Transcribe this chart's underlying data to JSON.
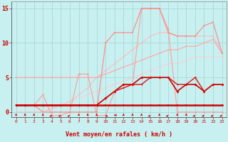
{
  "background_color": "#c8f0f0",
  "grid_color": "#a8d8d8",
  "xlabel": "Vent moyen/en rafales ( km/h )",
  "xlim": [
    -0.5,
    23.5
  ],
  "ylim": [
    -0.7,
    16
  ],
  "yticks": [
    0,
    5,
    10,
    15
  ],
  "xticks": [
    0,
    1,
    2,
    3,
    4,
    5,
    6,
    7,
    8,
    9,
    10,
    11,
    12,
    13,
    14,
    15,
    16,
    17,
    18,
    19,
    20,
    21,
    22,
    23
  ],
  "series": [
    {
      "x": [
        0,
        1,
        2,
        3,
        4,
        5,
        6,
        7,
        8,
        9,
        10,
        11,
        12,
        13,
        14,
        15,
        16,
        17,
        18,
        19,
        20,
        21,
        22,
        23
      ],
      "y": [
        1,
        1,
        1,
        1,
        1,
        1,
        1,
        1,
        1,
        1,
        1,
        1,
        1,
        1,
        1,
        1,
        1,
        1,
        1,
        1,
        1,
        1,
        1,
        1
      ],
      "color": "#cc0000",
      "linewidth": 1.8,
      "marker": "s",
      "markersize": 2.0,
      "alpha": 1.0,
      "zorder": 5
    },
    {
      "x": [
        0,
        1,
        2,
        3,
        4,
        5,
        6,
        7,
        8,
        9,
        10,
        11,
        12,
        13,
        14,
        15,
        16,
        17,
        18,
        19,
        20,
        21,
        22,
        23
      ],
      "y": [
        1,
        1,
        1,
        1,
        1,
        1,
        1,
        1,
        1,
        1,
        2,
        3,
        4,
        4,
        5,
        5,
        5,
        5,
        3,
        4,
        4,
        3,
        4,
        4
      ],
      "color": "#cc0000",
      "linewidth": 1.2,
      "marker": "D",
      "markersize": 2.0,
      "alpha": 1.0,
      "zorder": 4
    },
    {
      "x": [
        0,
        1,
        2,
        3,
        4,
        5,
        6,
        7,
        8,
        9,
        10,
        11,
        12,
        13,
        14,
        15,
        16,
        17,
        18,
        19,
        20,
        21,
        22,
        23
      ],
      "y": [
        5,
        5,
        5,
        5,
        5,
        5,
        5,
        5,
        5,
        5,
        5.5,
        6,
        6.5,
        7,
        7.5,
        8,
        8.5,
        9,
        9,
        9.5,
        9.5,
        10,
        10.5,
        8.5
      ],
      "color": "#ffaaaa",
      "linewidth": 1.0,
      "marker": "s",
      "markersize": 1.8,
      "alpha": 0.9,
      "zorder": 2
    },
    {
      "x": [
        0,
        1,
        2,
        3,
        4,
        5,
        6,
        7,
        8,
        9,
        10,
        11,
        12,
        13,
        14,
        15,
        16,
        17,
        18,
        19,
        20,
        21,
        22,
        23
      ],
      "y": [
        0,
        0,
        0,
        0,
        0.5,
        1,
        1.5,
        2,
        2.5,
        3,
        3.5,
        4,
        4.5,
        5,
        5.5,
        6,
        6.5,
        7,
        7,
        7.5,
        8,
        8,
        8,
        8
      ],
      "color": "#ffcccc",
      "linewidth": 1.0,
      "marker": "o",
      "markersize": 1.5,
      "alpha": 0.75,
      "zorder": 1
    },
    {
      "x": [
        0,
        1,
        2,
        3,
        4,
        5,
        6,
        7,
        8,
        9,
        10,
        11,
        12,
        13,
        14,
        15,
        16,
        17,
        18,
        19,
        20,
        21,
        22,
        23
      ],
      "y": [
        0,
        0,
        0,
        0,
        0.5,
        1,
        1.5,
        2.5,
        3.5,
        5,
        6,
        7,
        8,
        9,
        10,
        11,
        11.5,
        11.5,
        11,
        11,
        11,
        11,
        11,
        8.5
      ],
      "color": "#ffbbbb",
      "linewidth": 1.0,
      "marker": "o",
      "markersize": 1.8,
      "alpha": 0.8,
      "zorder": 1
    },
    {
      "x": [
        0,
        1,
        2,
        3,
        4,
        5,
        6,
        7,
        8,
        9,
        10,
        11,
        12,
        13,
        14,
        15,
        16,
        17,
        18,
        19,
        20,
        21,
        22,
        23
      ],
      "y": [
        1,
        1,
        1,
        2.5,
        -0.5,
        -0.5,
        0,
        5.5,
        5.5,
        -0.5,
        -0.5,
        3,
        4,
        4,
        15,
        15,
        15,
        12,
        0,
        0,
        0,
        0,
        0,
        0
      ],
      "color": "#ff9999",
      "linewidth": 0.9,
      "marker": "o",
      "markersize": 2.0,
      "alpha": 0.85,
      "zorder": 3
    },
    {
      "x": [
        0,
        1,
        2,
        3,
        4,
        5,
        6,
        7,
        8,
        9,
        10,
        11,
        12,
        13,
        14,
        15,
        16,
        17,
        18,
        19,
        20,
        21,
        22,
        23
      ],
      "y": [
        1,
        1,
        1,
        0,
        0,
        0,
        0,
        0,
        0,
        0,
        10,
        11.5,
        11.5,
        11.5,
        15,
        15,
        15,
        11.5,
        11,
        11,
        11,
        12.5,
        13,
        8.5
      ],
      "color": "#ff8888",
      "linewidth": 1.0,
      "marker": "s",
      "markersize": 2.0,
      "alpha": 0.85,
      "zorder": 3
    },
    {
      "x": [
        0,
        1,
        2,
        3,
        4,
        5,
        6,
        7,
        8,
        9,
        10,
        11,
        12,
        13,
        14,
        15,
        16,
        17,
        18,
        19,
        20,
        21,
        22,
        23
      ],
      "y": [
        1,
        1,
        1,
        1,
        1,
        1,
        1,
        1,
        1,
        1,
        2,
        3,
        3.5,
        4,
        4,
        5,
        5,
        5,
        4,
        4,
        5,
        3,
        4,
        4
      ],
      "color": "#dd1111",
      "linewidth": 1.0,
      "marker": "v",
      "markersize": 2.0,
      "alpha": 1.0,
      "zorder": 4
    }
  ],
  "arrow_data": {
    "x": [
      0,
      1,
      2,
      3,
      4,
      5,
      6,
      7,
      8,
      9,
      10,
      11,
      12,
      13,
      14,
      15,
      16,
      17,
      18,
      19,
      20,
      21,
      22,
      23
    ],
    "angle": [
      90,
      90,
      90,
      90,
      45,
      45,
      45,
      90,
      90,
      90,
      135,
      180,
      90,
      90,
      90,
      45,
      90,
      45,
      90,
      90,
      45,
      45,
      45,
      45
    ],
    "y_pos": -0.45,
    "color": "#cc0000"
  }
}
